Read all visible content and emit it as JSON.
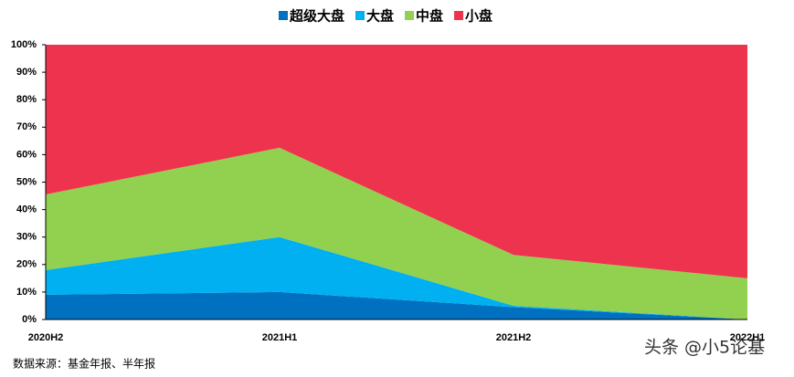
{
  "chart_data": {
    "type": "stacked-area",
    "stacked_percent": true,
    "categories": [
      "2020H2",
      "2021H1",
      "2021H2",
      "2022H1"
    ],
    "series": [
      {
        "name": "超级大盘",
        "color": "#0070c0",
        "values": [
          9,
          10,
          4.5,
          0
        ]
      },
      {
        "name": "大盘",
        "color": "#00b0f0",
        "values": [
          9,
          20,
          0.5,
          0
        ]
      },
      {
        "name": "中盘",
        "color": "#92d050",
        "values": [
          27.5,
          32.5,
          18.5,
          15
        ]
      },
      {
        "name": "小盘",
        "color": "#ee334e",
        "values": [
          54.5,
          37.5,
          76.5,
          85
        ]
      }
    ],
    "ylim": [
      0,
      100
    ],
    "yticks": [
      {
        "value": 0,
        "label": "0%"
      },
      {
        "value": 10,
        "label": "10%"
      },
      {
        "value": 20,
        "label": "20%"
      },
      {
        "value": 30,
        "label": "30%"
      },
      {
        "value": 40,
        "label": "40%"
      },
      {
        "value": 50,
        "label": "50%"
      },
      {
        "value": 60,
        "label": "60%"
      },
      {
        "value": 70,
        "label": "70%"
      },
      {
        "value": 80,
        "label": "80%"
      },
      {
        "value": 90,
        "label": "90%"
      },
      {
        "value": 100,
        "label": "100%"
      }
    ],
    "legend_position": "top",
    "source": "数据来源：基金年报、半年报",
    "watermark": "头条 @小5论基"
  }
}
